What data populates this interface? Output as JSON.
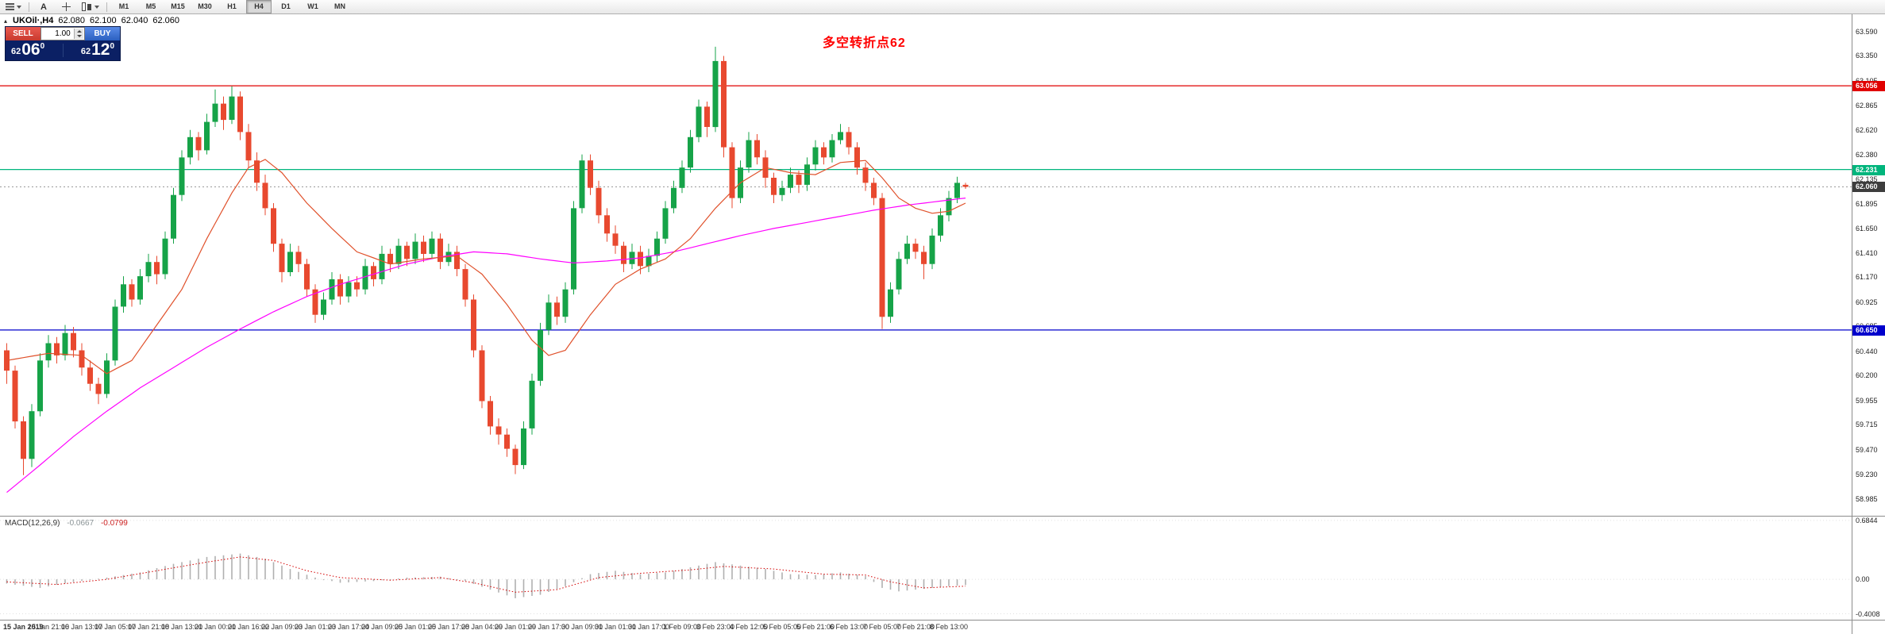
{
  "toolbar": {
    "annotate_label": "A",
    "timeframes": [
      "M1",
      "M5",
      "M15",
      "M30",
      "H1",
      "H4",
      "D1",
      "W1",
      "MN"
    ],
    "active_timeframe": "H4"
  },
  "icons": {
    "collapse": "▴"
  },
  "chart_header": {
    "symbol": "UKOil·,H4",
    "open": "62.080",
    "high": "62.100",
    "low": "62.040",
    "close": "62.060"
  },
  "trade_panel": {
    "sell_label": "SELL",
    "buy_label": "BUY",
    "volume": "1.00",
    "bid": {
      "whole": "62",
      "pips": "06",
      "sup": "0"
    },
    "ask": {
      "whole": "62",
      "pips": "12",
      "sup": "0"
    }
  },
  "annotation": {
    "text": "多空转折点62",
    "color": "#ff0000"
  },
  "colors": {
    "panel_navy": "#0b2064",
    "sell_red_top": "#ea5a50",
    "sell_red_bottom": "#c83a2e",
    "buy_blue_top": "#5a8ce8",
    "buy_blue_bottom": "#2b5fc0"
  },
  "lines": [
    {
      "name": "resistance",
      "value": 63.056,
      "label": "63.056",
      "color": "#e00000"
    },
    {
      "name": "pivot",
      "value": 62.231,
      "label": "62.231",
      "color": "#00b57c"
    },
    {
      "name": "support",
      "value": 60.65,
      "label": "60.650",
      "color": "#0000cc"
    }
  ],
  "current_price": {
    "value": 62.06,
    "label": "62.060",
    "color": "#3d3d3d"
  },
  "chart_data": {
    "type": "candlestick",
    "title": "UKOil H4",
    "y_range": [
      58.82,
      63.76
    ],
    "colors": {
      "bull": "#16a348",
      "bear": "#e8492f"
    },
    "y_axis_labels": [
      "63.590",
      "63.350",
      "63.105",
      "62.865",
      "62.620",
      "62.380",
      "62.135",
      "61.895",
      "61.650",
      "61.410",
      "61.170",
      "60.925",
      "60.685",
      "60.440",
      "60.200",
      "59.955",
      "59.715",
      "59.470",
      "59.230",
      "58.985"
    ],
    "time_labels": [
      "15 Jan 2019",
      "15 Jan 21:00",
      "16 Jan 13:00",
      "17 Jan 05:00",
      "17 Jan 21:00",
      "18 Jan 13:00",
      "21 Jan 00:00",
      "21 Jan 16:00",
      "22 Jan 09:00",
      "23 Jan 01:00",
      "23 Jan 17:00",
      "24 Jan 09:00",
      "25 Jan 01:00",
      "25 Jan 17:00",
      "28 Jan 04:00",
      "29 Jan 01:00",
      "29 Jan 17:00",
      "30 Jan 09:00",
      "31 Jan 01:00",
      "31 Jan 17:00",
      "1 Feb 09:00",
      "3 Feb 23:00",
      "4 Feb 12:00",
      "5 Feb 05:00",
      "5 Feb 21:00",
      "6 Feb 13:00",
      "7 Feb 05:00",
      "7 Feb 21:00",
      "8 Feb 13:00"
    ],
    "candles": [
      [
        60.45,
        60.52,
        60.12,
        60.25
      ],
      [
        60.25,
        60.3,
        59.68,
        59.75
      ],
      [
        59.75,
        59.8,
        59.22,
        59.38
      ],
      [
        59.38,
        59.92,
        59.3,
        59.85
      ],
      [
        59.85,
        60.42,
        59.8,
        60.35
      ],
      [
        60.35,
        60.6,
        60.28,
        60.52
      ],
      [
        60.52,
        60.58,
        60.32,
        60.4
      ],
      [
        60.4,
        60.7,
        60.35,
        60.62
      ],
      [
        60.62,
        60.68,
        60.38,
        60.45
      ],
      [
        60.45,
        60.52,
        60.2,
        60.28
      ],
      [
        60.28,
        60.35,
        60.05,
        60.12
      ],
      [
        60.12,
        60.18,
        59.92,
        60.02
      ],
      [
        60.02,
        60.42,
        59.98,
        60.35
      ],
      [
        60.35,
        60.95,
        60.3,
        60.88
      ],
      [
        60.88,
        61.18,
        60.82,
        61.1
      ],
      [
        61.1,
        61.15,
        60.88,
        60.95
      ],
      [
        60.95,
        61.25,
        60.9,
        61.18
      ],
      [
        61.18,
        61.4,
        61.12,
        61.32
      ],
      [
        61.32,
        61.38,
        61.1,
        61.2
      ],
      [
        61.2,
        61.62,
        61.15,
        61.55
      ],
      [
        61.55,
        62.05,
        61.5,
        61.98
      ],
      [
        61.98,
        62.42,
        61.92,
        62.35
      ],
      [
        62.35,
        62.62,
        62.28,
        62.55
      ],
      [
        62.55,
        62.6,
        62.32,
        62.42
      ],
      [
        62.42,
        62.78,
        62.38,
        62.7
      ],
      [
        62.7,
        63.02,
        62.65,
        62.88
      ],
      [
        62.88,
        62.95,
        62.62,
        62.72
      ],
      [
        62.72,
        63.05,
        62.68,
        62.95
      ],
      [
        62.95,
        63.0,
        62.52,
        62.6
      ],
      [
        62.6,
        62.68,
        62.25,
        62.32
      ],
      [
        62.32,
        62.4,
        62.02,
        62.1
      ],
      [
        62.1,
        62.18,
        61.78,
        61.85
      ],
      [
        61.85,
        61.9,
        61.42,
        61.5
      ],
      [
        61.5,
        61.55,
        61.12,
        61.22
      ],
      [
        61.22,
        61.5,
        61.18,
        61.42
      ],
      [
        61.42,
        61.48,
        61.22,
        61.3
      ],
      [
        61.3,
        61.35,
        60.98,
        61.05
      ],
      [
        61.05,
        61.1,
        60.72,
        60.8
      ],
      [
        60.8,
        61.02,
        60.75,
        60.95
      ],
      [
        60.95,
        61.22,
        60.9,
        61.15
      ],
      [
        61.15,
        61.2,
        60.9,
        60.98
      ],
      [
        60.98,
        61.18,
        60.92,
        61.12
      ],
      [
        61.12,
        61.18,
        60.98,
        61.05
      ],
      [
        61.05,
        61.35,
        61.0,
        61.28
      ],
      [
        61.28,
        61.32,
        61.08,
        61.15
      ],
      [
        61.15,
        61.48,
        61.1,
        61.4
      ],
      [
        61.4,
        61.45,
        61.22,
        61.3
      ],
      [
        61.3,
        61.55,
        61.25,
        61.48
      ],
      [
        61.48,
        61.52,
        61.28,
        61.35
      ],
      [
        61.35,
        61.6,
        61.3,
        61.52
      ],
      [
        61.52,
        61.58,
        61.32,
        61.4
      ],
      [
        61.4,
        61.62,
        61.35,
        61.55
      ],
      [
        61.55,
        61.6,
        61.25,
        61.32
      ],
      [
        61.32,
        61.5,
        61.28,
        61.42
      ],
      [
        61.42,
        61.48,
        61.18,
        61.25
      ],
      [
        61.25,
        61.3,
        60.88,
        60.95
      ],
      [
        60.95,
        61.0,
        60.38,
        60.45
      ],
      [
        60.45,
        60.5,
        59.88,
        59.95
      ],
      [
        59.95,
        60.0,
        59.62,
        59.7
      ],
      [
        59.7,
        59.78,
        59.52,
        59.62
      ],
      [
        59.62,
        59.68,
        59.4,
        59.48
      ],
      [
        59.48,
        59.52,
        59.23,
        59.32
      ],
      [
        59.32,
        59.75,
        59.28,
        59.68
      ],
      [
        59.68,
        60.22,
        59.62,
        60.15
      ],
      [
        60.15,
        60.72,
        60.1,
        60.65
      ],
      [
        60.65,
        61.0,
        60.6,
        60.92
      ],
      [
        60.92,
        60.98,
        60.7,
        60.78
      ],
      [
        60.78,
        61.12,
        60.72,
        61.05
      ],
      [
        61.05,
        61.92,
        61.0,
        61.85
      ],
      [
        61.85,
        62.38,
        61.8,
        62.32
      ],
      [
        62.32,
        62.38,
        61.98,
        62.05
      ],
      [
        62.05,
        62.12,
        61.7,
        61.78
      ],
      [
        61.78,
        61.85,
        61.52,
        61.6
      ],
      [
        61.6,
        61.68,
        61.4,
        61.48
      ],
      [
        61.48,
        61.52,
        61.22,
        61.3
      ],
      [
        61.3,
        61.5,
        61.25,
        61.42
      ],
      [
        61.42,
        61.48,
        61.2,
        61.28
      ],
      [
        61.28,
        61.45,
        61.22,
        61.38
      ],
      [
        61.38,
        61.62,
        61.32,
        61.55
      ],
      [
        61.55,
        61.92,
        61.5,
        61.85
      ],
      [
        61.85,
        62.12,
        61.8,
        62.05
      ],
      [
        62.05,
        62.32,
        62.0,
        62.25
      ],
      [
        62.25,
        62.62,
        62.2,
        62.55
      ],
      [
        62.55,
        62.92,
        62.5,
        62.85
      ],
      [
        62.85,
        62.9,
        62.55,
        62.65
      ],
      [
        62.65,
        63.44,
        62.6,
        63.3
      ],
      [
        63.3,
        63.35,
        62.35,
        62.45
      ],
      [
        62.45,
        62.5,
        61.85,
        61.95
      ],
      [
        61.95,
        62.32,
        61.9,
        62.25
      ],
      [
        62.25,
        62.6,
        62.2,
        62.52
      ],
      [
        62.52,
        62.58,
        62.28,
        62.35
      ],
      [
        62.35,
        62.42,
        62.05,
        62.15
      ],
      [
        62.15,
        62.2,
        61.9,
        61.98
      ],
      [
        61.98,
        62.12,
        61.92,
        62.05
      ],
      [
        62.05,
        62.25,
        62.0,
        62.18
      ],
      [
        62.18,
        62.22,
        62.0,
        62.08
      ],
      [
        62.08,
        62.35,
        62.02,
        62.28
      ],
      [
        62.28,
        62.52,
        62.22,
        62.45
      ],
      [
        62.45,
        62.5,
        62.28,
        62.35
      ],
      [
        62.35,
        62.58,
        62.3,
        62.52
      ],
      [
        62.52,
        62.68,
        62.48,
        62.6
      ],
      [
        62.6,
        62.65,
        62.38,
        62.45
      ],
      [
        62.45,
        62.5,
        62.18,
        62.25
      ],
      [
        62.25,
        62.3,
        62.02,
        62.1
      ],
      [
        62.1,
        62.15,
        61.88,
        61.95
      ],
      [
        61.95,
        62.0,
        60.66,
        60.78
      ],
      [
        60.78,
        61.12,
        60.72,
        61.05
      ],
      [
        61.05,
        61.42,
        61.0,
        61.35
      ],
      [
        61.35,
        61.58,
        61.3,
        61.5
      ],
      [
        61.5,
        61.55,
        61.35,
        61.42
      ],
      [
        61.42,
        61.48,
        61.15,
        61.3
      ],
      [
        61.3,
        61.65,
        61.25,
        61.58
      ],
      [
        61.58,
        61.85,
        61.52,
        61.78
      ],
      [
        61.78,
        62.02,
        61.72,
        61.95
      ],
      [
        61.95,
        62.16,
        61.9,
        62.1
      ],
      [
        62.08,
        62.1,
        62.04,
        62.06
      ]
    ],
    "ma_fast": {
      "color": "#e0512b",
      "points": [
        [
          0,
          60.35
        ],
        [
          5,
          60.42
        ],
        [
          9,
          60.4
        ],
        [
          12,
          60.22
        ],
        [
          15,
          60.35
        ],
        [
          18,
          60.7
        ],
        [
          21,
          61.05
        ],
        [
          24,
          61.55
        ],
        [
          27,
          62.0
        ],
        [
          29,
          62.25
        ],
        [
          31,
          62.33
        ],
        [
          33,
          62.2
        ],
        [
          36,
          61.9
        ],
        [
          39,
          61.65
        ],
        [
          42,
          61.42
        ],
        [
          46,
          61.3
        ],
        [
          50,
          61.35
        ],
        [
          54,
          61.38
        ],
        [
          57,
          61.2
        ],
        [
          60,
          60.9
        ],
        [
          63,
          60.55
        ],
        [
          65,
          60.4
        ],
        [
          67,
          60.45
        ],
        [
          70,
          60.8
        ],
        [
          73,
          61.1
        ],
        [
          76,
          61.25
        ],
        [
          79,
          61.35
        ],
        [
          82,
          61.55
        ],
        [
          85,
          61.85
        ],
        [
          88,
          62.1
        ],
        [
          91,
          62.25
        ],
        [
          94,
          62.2
        ],
        [
          97,
          62.18
        ],
        [
          100,
          62.3
        ],
        [
          103,
          62.32
        ],
        [
          105,
          62.15
        ],
        [
          107,
          61.95
        ],
        [
          109,
          61.85
        ],
        [
          111,
          61.8
        ],
        [
          113,
          61.82
        ],
        [
          115,
          61.9
        ]
      ]
    },
    "ma_slow": {
      "color": "#ff00ff",
      "points": [
        [
          0,
          59.05
        ],
        [
          4,
          59.32
        ],
        [
          8,
          59.6
        ],
        [
          12,
          59.85
        ],
        [
          16,
          60.08
        ],
        [
          20,
          60.28
        ],
        [
          24,
          60.48
        ],
        [
          28,
          60.66
        ],
        [
          32,
          60.83
        ],
        [
          36,
          60.98
        ],
        [
          40,
          61.1
        ],
        [
          44,
          61.2
        ],
        [
          48,
          61.3
        ],
        [
          52,
          61.37
        ],
        [
          56,
          61.42
        ],
        [
          60,
          61.4
        ],
        [
          64,
          61.35
        ],
        [
          68,
          61.31
        ],
        [
          72,
          61.33
        ],
        [
          76,
          61.36
        ],
        [
          80,
          61.42
        ],
        [
          84,
          61.5
        ],
        [
          88,
          61.58
        ],
        [
          92,
          61.65
        ],
        [
          96,
          61.71
        ],
        [
          100,
          61.77
        ],
        [
          104,
          61.83
        ],
        [
          108,
          61.88
        ],
        [
          112,
          61.92
        ],
        [
          115,
          61.95
        ]
      ]
    }
  },
  "macd": {
    "label": "MACD(12,26,9)",
    "value": "-0.0667",
    "signal_value": "-0.0799",
    "axis_labels": [
      "0.6844",
      "0.00",
      "-0.4008"
    ],
    "y_range": [
      -0.47,
      0.73
    ],
    "hist_color": "#b0b0b0",
    "signal_color": "#d40000",
    "hist_points": [
      [
        0,
        -0.05
      ],
      [
        4,
        -0.1
      ],
      [
        8,
        -0.03
      ],
      [
        12,
        0.02
      ],
      [
        16,
        0.08
      ],
      [
        20,
        0.18
      ],
      [
        24,
        0.26
      ],
      [
        28,
        0.3
      ],
      [
        31,
        0.24
      ],
      [
        34,
        0.12
      ],
      [
        37,
        0.02
      ],
      [
        40,
        -0.04
      ],
      [
        44,
        -0.02
      ],
      [
        48,
        0.02
      ],
      [
        52,
        0.03
      ],
      [
        55,
        -0.02
      ],
      [
        58,
        -0.12
      ],
      [
        61,
        -0.22
      ],
      [
        64,
        -0.18
      ],
      [
        67,
        -0.08
      ],
      [
        70,
        0.06
      ],
      [
        73,
        0.1
      ],
      [
        76,
        0.06
      ],
      [
        79,
        0.08
      ],
      [
        82,
        0.14
      ],
      [
        85,
        0.2
      ],
      [
        88,
        0.16
      ],
      [
        91,
        0.12
      ],
      [
        94,
        0.06
      ],
      [
        97,
        0.05
      ],
      [
        100,
        0.08
      ],
      [
        103,
        0.04
      ],
      [
        105,
        -0.1
      ],
      [
        107,
        -0.14
      ],
      [
        109,
        -0.12
      ],
      [
        111,
        -0.1
      ],
      [
        113,
        -0.08
      ],
      [
        115,
        -0.0667
      ]
    ],
    "signal_points": [
      [
        0,
        -0.03
      ],
      [
        6,
        -0.06
      ],
      [
        12,
        0.0
      ],
      [
        18,
        0.1
      ],
      [
        24,
        0.2
      ],
      [
        28,
        0.26
      ],
      [
        32,
        0.22
      ],
      [
        36,
        0.1
      ],
      [
        40,
        0.02
      ],
      [
        46,
        -0.01
      ],
      [
        52,
        0.02
      ],
      [
        56,
        -0.04
      ],
      [
        61,
        -0.15
      ],
      [
        66,
        -0.12
      ],
      [
        71,
        0.02
      ],
      [
        76,
        0.07
      ],
      [
        82,
        0.11
      ],
      [
        86,
        0.15
      ],
      [
        92,
        0.12
      ],
      [
        98,
        0.06
      ],
      [
        103,
        0.05
      ],
      [
        106,
        -0.03
      ],
      [
        110,
        -0.1
      ],
      [
        115,
        -0.0799
      ]
    ]
  }
}
